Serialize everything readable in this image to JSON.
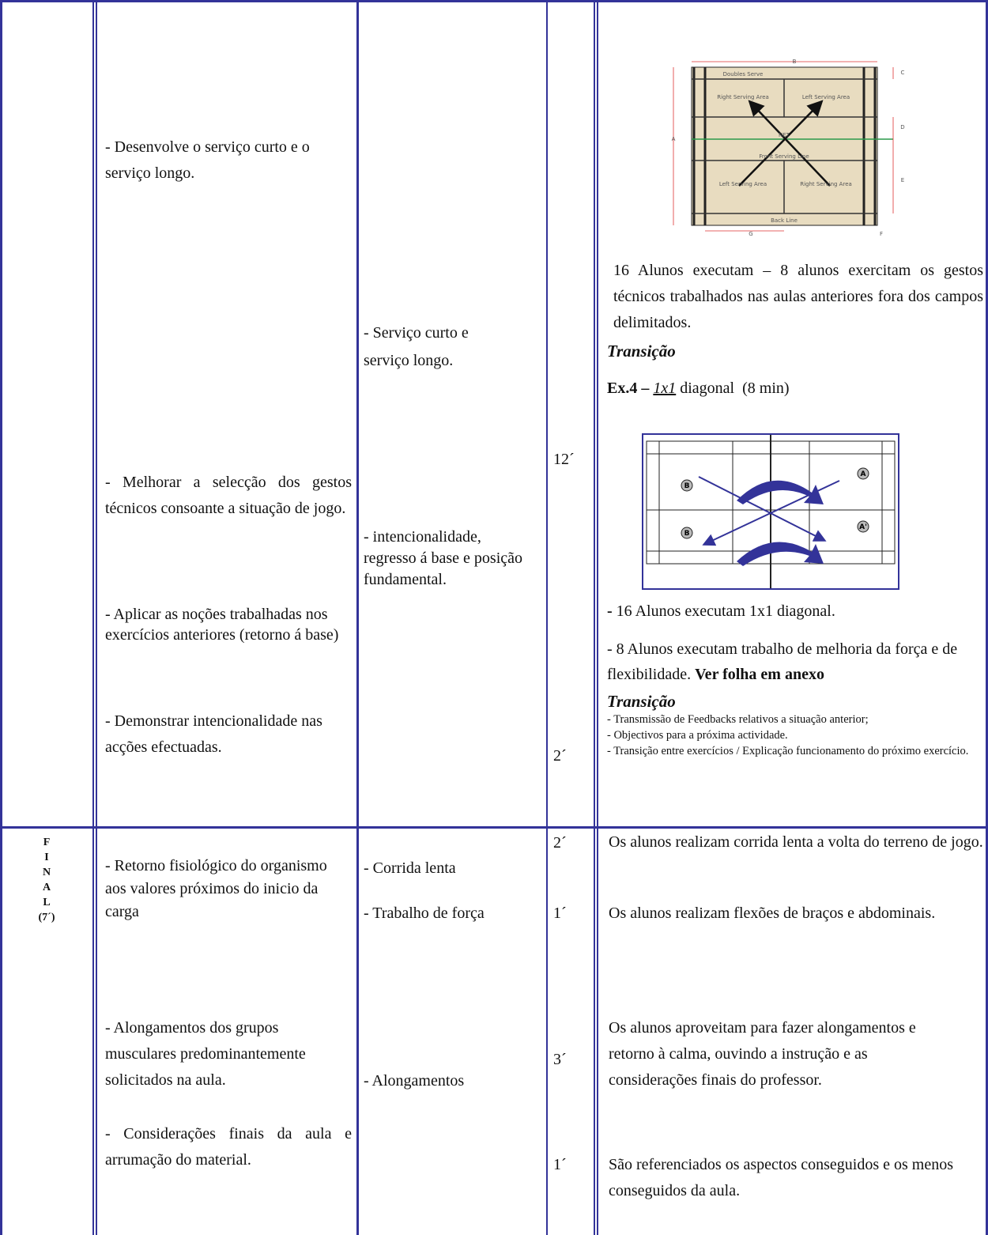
{
  "section_1": {
    "objectives": [
      "- Desenvolve o serviço curto e o serviço longo.",
      "- Melhorar a selecção dos gestos técnicos consoante a situação de jogo.",
      "- Aplicar as noções trabalhadas nos exercícios anteriores (retorno á base)",
      "- Demonstrar intencionalidade nas acções efectuadas."
    ],
    "contents": [
      "- Serviço curto e serviço longo.",
      "- intencionalidade, regresso á base e posição fundamental."
    ],
    "times": [
      "12´",
      "2´"
    ],
    "organization": {
      "court_labels": [
        "Doubles Serve",
        "Right Serving Area",
        "Left Serving Area",
        "NET",
        "Front Serving Line",
        "Left Serving Area",
        "Right Serving Area",
        "Back Line",
        "A",
        "B",
        "C",
        "D",
        "E",
        "F",
        "G"
      ],
      "paragraph_1": "16 Alunos executam – 8 alunos exercitam os gestos técnicos trabalhados nas aulas anteriores fora dos campos delimitados.",
      "transition_1": "Transição",
      "exercise_label": "Ex.4 –",
      "exercise_format": "1x1",
      "exercise_rest": "diagonal  (8 min)",
      "diagram_labels": [
        "B",
        "A",
        "B",
        "A'"
      ],
      "paragraph_2_dash": "-",
      "paragraph_2": "16 Alunos executam 1x1 diagonal.",
      "paragraph_3": "- 8 Alunos executam trabalho de melhoria da força e de flexibilidade.",
      "paragraph_3_bold": "Ver folha em anexo",
      "transition_2": "Transição",
      "notes": [
        "- Transmissão de Feedbacks relativos a situação anterior;",
        "- Objectivos para a próxima actividade.",
        "- Transição entre exercícios / Explicação funcionamento do próximo exercício."
      ]
    }
  },
  "section_2": {
    "phase_letters": [
      "F",
      "I",
      "N",
      "A",
      "L"
    ],
    "phase_time": "(7´)",
    "objectives": [
      "- Retorno fisiológico do organismo aos valores próximos do inicio da carga",
      "- Alongamentos dos grupos musculares predominantemente solicitados na aula.",
      "- Considerações finais da aula e arrumação do material."
    ],
    "contents": [
      "- Corrida lenta",
      "- Trabalho de força",
      "- Alongamentos"
    ],
    "times": [
      "2´",
      "1´",
      "3´",
      "1´"
    ],
    "organization": [
      "Os alunos realizam corrida lenta a volta do terreno de jogo.",
      "Os alunos realizam flexões de braços e abdominais.",
      "Os alunos aproveitam para fazer alongamentos e retorno à calma, ouvindo a instrução e as considerações finais do professor.",
      "São referenciados os aspectos conseguidos e os menos conseguidos da aula."
    ]
  }
}
